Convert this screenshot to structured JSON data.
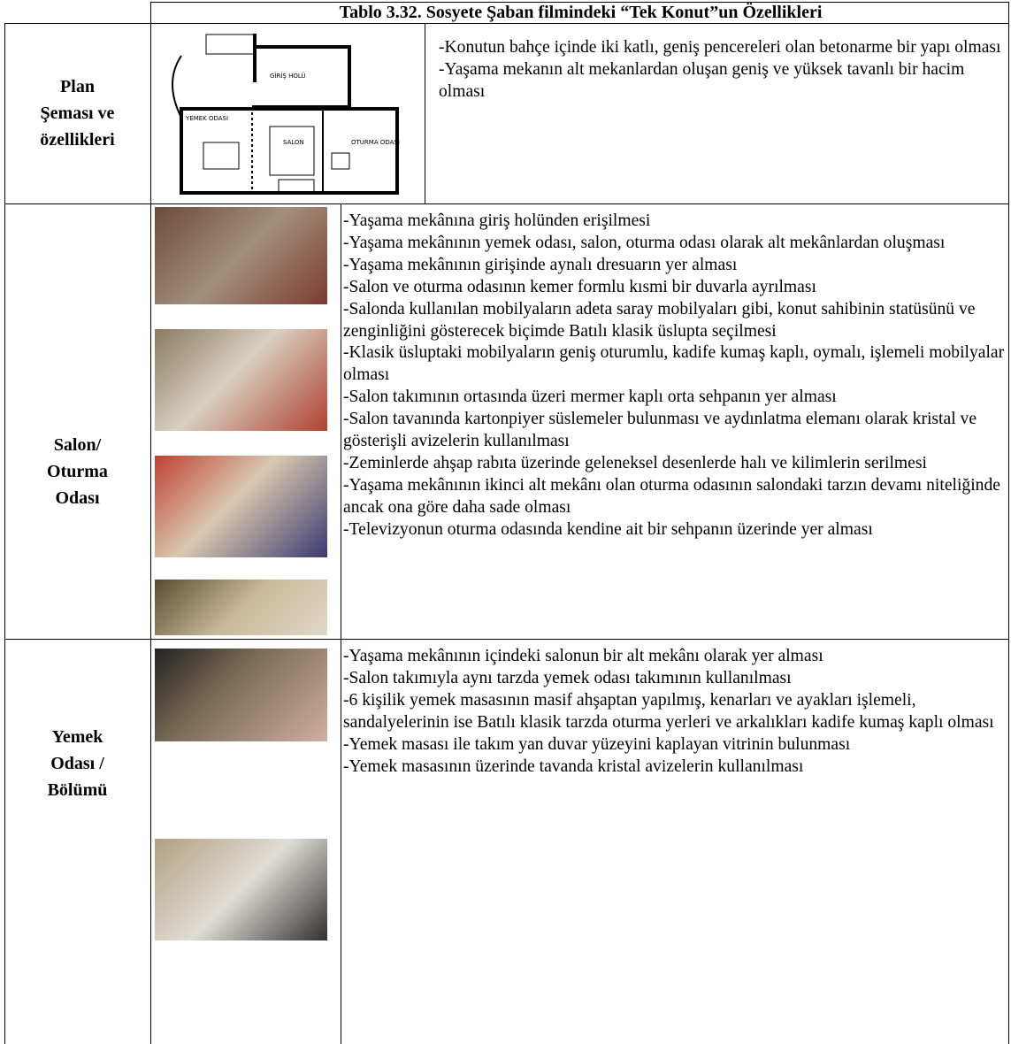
{
  "table": {
    "title": "Tablo 3.32. Sosyete Şaban filmindeki “Tek Konut”un Özellikleri",
    "rows": [
      {
        "label": "Plan\nŞeması ve\nözellikleri",
        "items": [
          "-Konutun bahçe içinde iki katlı, geniş pencereleri olan betonarme bir yapı olması",
          "-Yaşama mekanın alt mekanlardan oluşan geniş ve yüksek tavanlı bir hacim olması"
        ]
      },
      {
        "label": "Salon/\nOturma\nOdası",
        "items": [
          "-Yaşama mekânına giriş holünden erişilmesi",
          "-Yaşama mekânının yemek odası, salon, oturma odası olarak alt mekânlardan oluşması",
          "-Yaşama mekânının girişinde aynalı dresuarın yer alması",
          "-Salon ve oturma odasının kemer formlu kısmi bir duvarla ayrılması",
          "-Salonda kullanılan mobilyaların adeta saray mobilyaları gibi, konut sahibinin statüsünü ve zenginliğini gösterecek biçimde Batılı klasik üslupta seçilmesi",
          "-Klasik üsluptaki mobilyaların geniş oturumlu, kadife kumaş kaplı, oymalı, işlemeli mobilyalar olması",
          "-Salon takımının ortasında üzeri mermer kaplı orta sehpanın yer alması",
          "-Salon tavanında kartonpiyer süslemeler bulunması ve aydınlatma elemanı olarak kristal ve gösterişli avizelerin kullanılması",
          "-Zeminlerde ahşap rabıta üzerinde geleneksel desenlerde halı ve kilimlerin serilmesi",
          "-Yaşama mekânının ikinci alt mekânı olan oturma odasının salondaki tarzın devamı niteliğinde ancak ona göre daha sade olması",
          "-Televizyonun oturma odasında kendine ait bir sehpanın üzerinde yer alması"
        ]
      },
      {
        "label": "Yemek\nOdası /\nBölümü",
        "items": [
          "-Yaşama mekânının içindeki salonun bir alt mekânı olarak yer alması",
          "-Salon takımıyla aynı tarzda yemek odası takımının kullanılması",
          "-6 kişilik yemek masasının masif ahşaptan yapılmış, kenarları ve ayakları işlemeli, sandalyelerinin ise Batılı klasik tarzda oturma yerleri ve arkalıkları kadife kumaş kaplı olması",
          "-Yemek masası ile takım yan duvar yüzeyini kaplayan vitrinin bulunması",
          "-Yemek masasının üzerinde tavanda kristal avizelerin kullanılması"
        ]
      }
    ]
  },
  "plan": {
    "labels": [
      "GİRİŞ HOLÜ",
      "YEMEK ODASI",
      "SALON",
      "OTURMA ODASI"
    ]
  }
}
